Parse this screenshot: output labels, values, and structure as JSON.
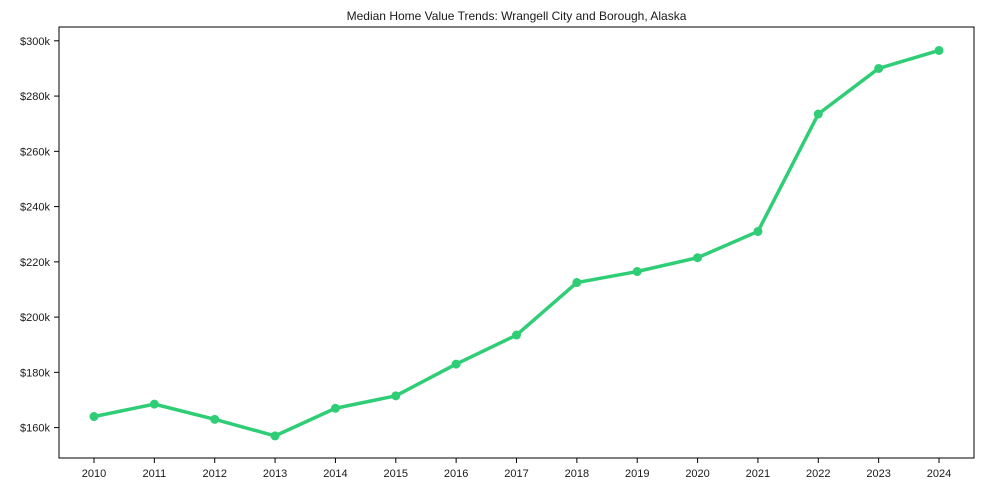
{
  "page": {
    "background_color": "#ffffff"
  },
  "chart_data": {
    "type": "line",
    "title": "Median Home Value Trends: Wrangell City and Borough, Alaska",
    "xlabel": "",
    "ylabel": "",
    "x": [
      2010,
      2011,
      2012,
      2013,
      2014,
      2015,
      2016,
      2017,
      2018,
      2019,
      2020,
      2021,
      2022,
      2023,
      2024
    ],
    "values": [
      164000,
      168500,
      163000,
      157000,
      167000,
      171500,
      183000,
      193500,
      212500,
      216500,
      221500,
      231000,
      273500,
      290000,
      296500
    ],
    "xlim": [
      2009.42,
      2024.58
    ],
    "ylim": [
      149000,
      305000
    ],
    "yticks": [
      {
        "value": 160000,
        "label": "$160k"
      },
      {
        "value": 180000,
        "label": "$180k"
      },
      {
        "value": 200000,
        "label": "$200k"
      },
      {
        "value": 220000,
        "label": "$220k"
      },
      {
        "value": 240000,
        "label": "$240k"
      },
      {
        "value": 260000,
        "label": "$260k"
      },
      {
        "value": 280000,
        "label": "$280k"
      },
      {
        "value": 300000,
        "label": "$300k"
      }
    ],
    "grid": false,
    "legend": null,
    "marker": "circle",
    "line_color": "#2fce76",
    "frame_color": "#000000",
    "text_color": "#1a1a1a"
  }
}
